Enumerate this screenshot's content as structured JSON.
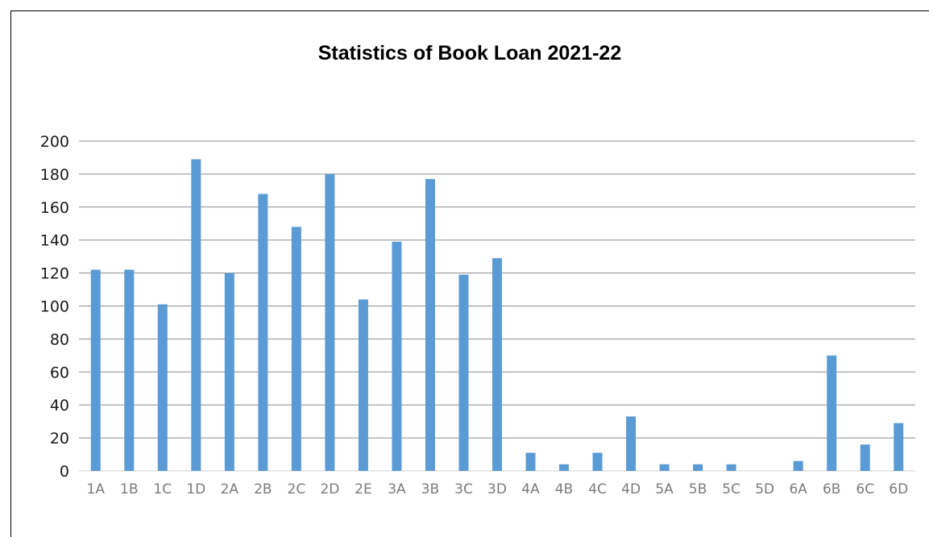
{
  "chart_data": {
    "type": "bar",
    "title": "Statistics of Book Loan 2021-22",
    "xlabel": "",
    "ylabel": "",
    "ylim": [
      0,
      200
    ],
    "yticks": [
      0,
      20,
      40,
      60,
      80,
      100,
      120,
      140,
      160,
      180,
      200
    ],
    "grid": true,
    "legend": "none",
    "bar_color": "#5b9bd5",
    "categories": [
      "1A",
      "1B",
      "1C",
      "1D",
      "2A",
      "2B",
      "2C",
      "2D",
      "2E",
      "3A",
      "3B",
      "3C",
      "3D",
      "4A",
      "4B",
      "4C",
      "4D",
      "5A",
      "5B",
      "5C",
      "5D",
      "6A",
      "6B",
      "6C",
      "6D"
    ],
    "values": [
      122,
      122,
      101,
      189,
      120,
      168,
      148,
      180,
      104,
      139,
      177,
      119,
      129,
      11,
      4,
      11,
      33,
      4,
      4,
      4,
      0,
      6,
      70,
      16,
      29
    ]
  }
}
